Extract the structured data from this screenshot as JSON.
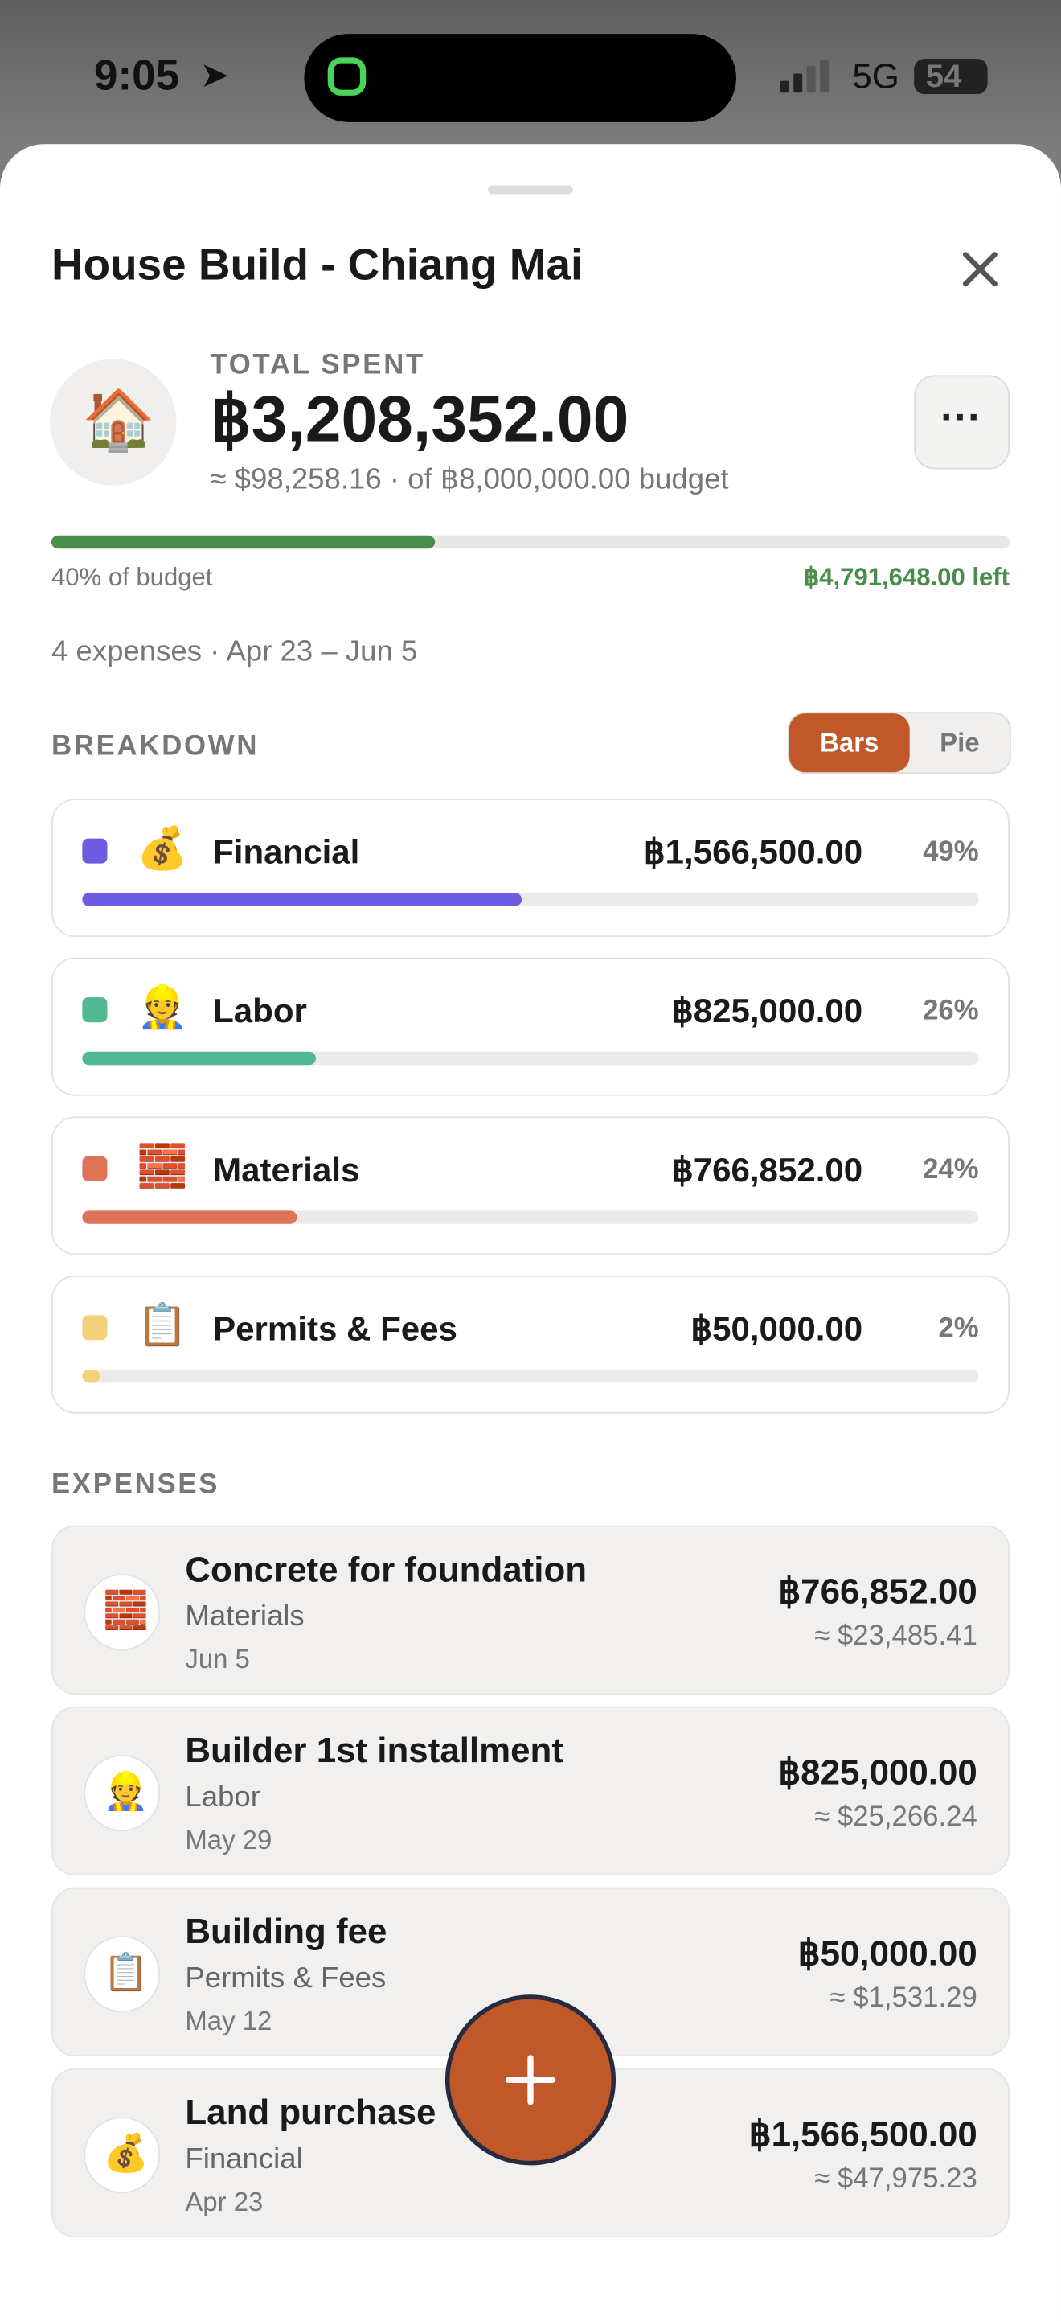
{
  "status": {
    "time": "9:05",
    "network": "5G",
    "battery": "54"
  },
  "project": {
    "title": "House Build - Chiang Mai",
    "icon": "🏠",
    "total_label": "TOTAL SPENT",
    "total": "฿3,208,352.00",
    "subline": "≈ $98,258.16 · of ฿8,000,000.00 budget",
    "budget_progress": {
      "value": 40,
      "label": "40% of budget"
    },
    "remaining": "฿4,791,648.00 left",
    "summary": "4 expenses · Apr 23 – Jun 5"
  },
  "breakdown": {
    "heading": "BREAKDOWN",
    "toggle": [
      "Bars",
      "Pie"
    ],
    "categories": [
      {
        "name": "Financial",
        "icon": "💰",
        "color": "#6c5ce0",
        "amount": "฿1,566,500.00",
        "share": {
          "value": 49,
          "label": "49%"
        }
      },
      {
        "name": "Labor",
        "icon": "👷",
        "color": "#52b891",
        "amount": "฿825,000.00",
        "share": {
          "value": 26,
          "label": "26%"
        }
      },
      {
        "name": "Materials",
        "icon": "🧱",
        "color": "#df7358",
        "amount": "฿766,852.00",
        "share": {
          "value": 24,
          "label": "24%"
        }
      },
      {
        "name": "Permits & Fees",
        "icon": "📋",
        "color": "#f5d07a",
        "amount": "฿50,000.00",
        "share": {
          "value": 2,
          "label": "2%"
        }
      }
    ]
  },
  "expenses": {
    "heading": "EXPENSES",
    "items": [
      {
        "title": "Concrete for foundation",
        "icon": "🧱",
        "category": "Materials",
        "date": "Jun 5",
        "amount": "฿766,852.00",
        "usd": "≈ $23,485.41"
      },
      {
        "title": "Builder 1st installment",
        "icon": "👷",
        "category": "Labor",
        "date": "May 29",
        "amount": "฿825,000.00",
        "usd": "≈ $25,266.24"
      },
      {
        "title": "Building fee",
        "icon": "📋",
        "category": "Permits & Fees",
        "date": "May 12",
        "amount": "฿50,000.00",
        "usd": "≈ $1,531.29"
      },
      {
        "title": "Land purchase",
        "icon": "💰",
        "category": "Financial",
        "date": "Apr 23",
        "amount": "฿1,566,500.00",
        "usd": "≈ $47,975.23"
      }
    ]
  }
}
